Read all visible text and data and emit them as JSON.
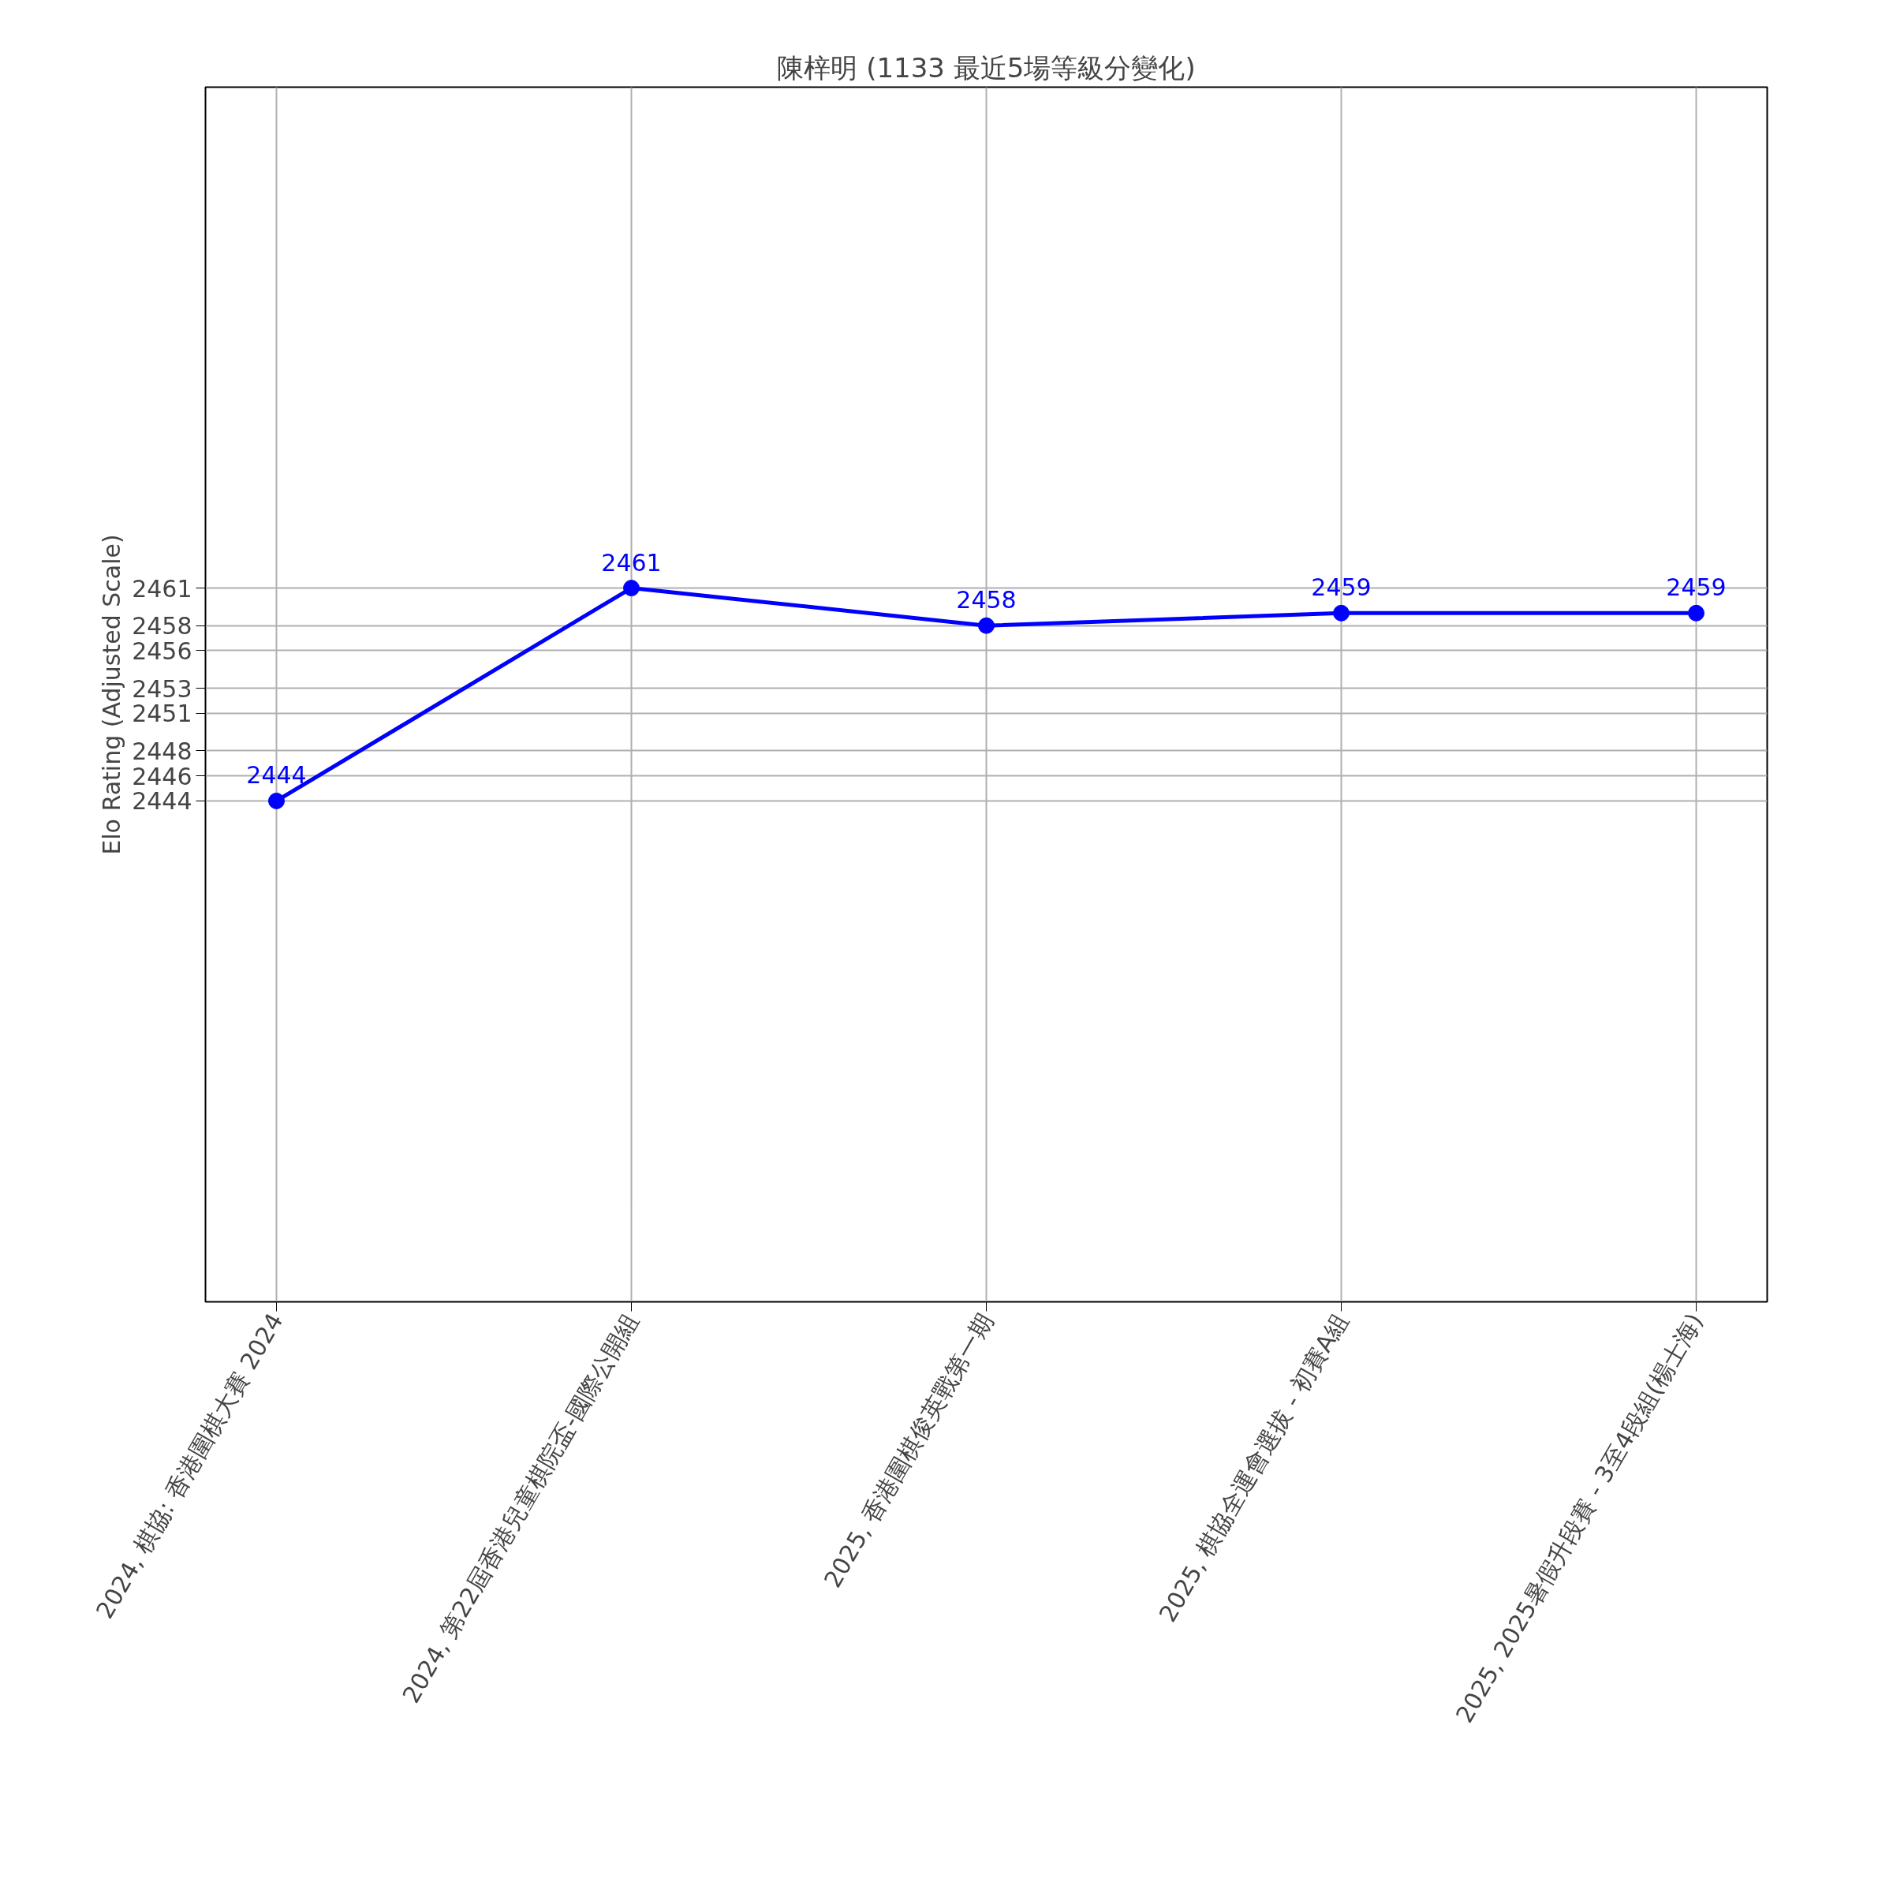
{
  "chart_data": {
    "type": "line",
    "title": "陳梓明 (1133 最近5場等級分變化)",
    "ylabel": "Elo Rating (Adjusted Scale)",
    "categories": [
      "2024, 棋協: 香港圍棋大賽 2024",
      "2024, 第22屆香港兒童棋院盃-國際公開組",
      "2025, 香港圍棋俊英戰第一期",
      "2025, 棋協全運會選拔 - 初賽A組",
      "2025, 2025暑假升段賽 - 3至4段組(楊士海)"
    ],
    "series": [
      {
        "color": "#0000ff",
        "values": [
          2444,
          2461,
          2458,
          2459,
          2459
        ],
        "value_labels": [
          "2444",
          "2461",
          "2458",
          "2459",
          "2459"
        ]
      }
    ],
    "ylim": [
      2404,
      2501
    ],
    "yticks": [
      2444,
      2446,
      2448,
      2451,
      2453,
      2456,
      2458,
      2461
    ],
    "grid": true,
    "marker": "circle",
    "line_style": "solid"
  }
}
